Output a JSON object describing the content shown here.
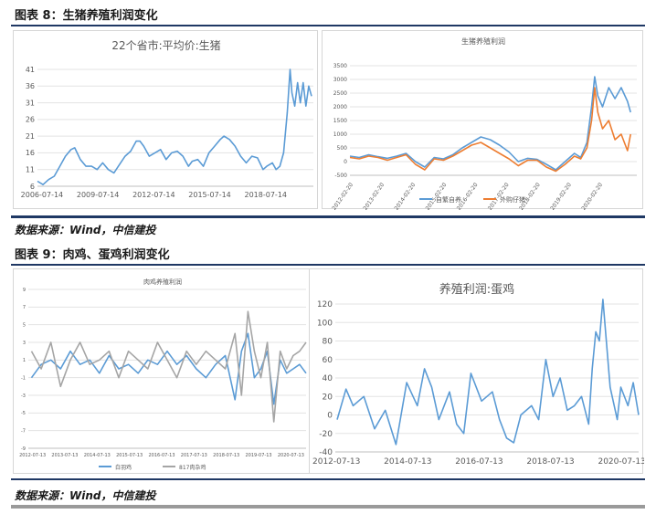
{
  "figure8": {
    "title": "图表 8：生猪养殖利润变化"
  },
  "figure9": {
    "title": "图表 9：肉鸡、蛋鸡利润变化"
  },
  "source_note_1": "数据来源：Wind，中信建投",
  "source_note_2": "数据来源：Wind，中信建投",
  "colors": {
    "blue": "#5b9bd5",
    "orange": "#ed7d31",
    "gray": "#a5a5a5",
    "rule": "#1f3864"
  },
  "chart_data": [
    {
      "id": "hog-price",
      "type": "line",
      "title": "22个省市:平均价:生猪",
      "xlabel": "",
      "ylabel": "",
      "xlim": [
        2006.3,
        2021.1
      ],
      "ylim": [
        6,
        41
      ],
      "yticks": [
        6,
        11,
        16,
        21,
        26,
        31,
        36,
        41
      ],
      "xticks": [
        2006.54,
        2009.54,
        2012.54,
        2015.54,
        2018.54
      ],
      "xtick_labels": [
        "2006-07-14",
        "2009-07-14",
        "2012-07-14",
        "2015-07-14",
        "2018-07-14"
      ],
      "grid": "horizontal",
      "series": [
        {
          "color": "#5b9bd5",
          "x": [
            2006.3,
            2006.6,
            2006.9,
            2007.2,
            2007.5,
            2007.8,
            2008.1,
            2008.3,
            2008.6,
            2008.9,
            2009.2,
            2009.5,
            2009.8,
            2010.1,
            2010.4,
            2010.7,
            2011.0,
            2011.3,
            2011.6,
            2011.8,
            2012.0,
            2012.3,
            2012.6,
            2012.9,
            2013.2,
            2013.5,
            2013.8,
            2014.1,
            2014.4,
            2014.6,
            2014.9,
            2015.2,
            2015.5,
            2015.8,
            2016.1,
            2016.3,
            2016.6,
            2016.9,
            2017.2,
            2017.5,
            2017.8,
            2018.1,
            2018.4,
            2018.6,
            2018.9,
            2019.1,
            2019.3,
            2019.5,
            2019.7,
            2019.85,
            2019.95,
            2020.1,
            2020.25,
            2020.4,
            2020.55,
            2020.7,
            2020.85,
            2021.0
          ],
          "y": [
            7.5,
            6.5,
            8,
            9,
            12,
            15,
            17,
            17.5,
            14,
            12,
            12,
            11,
            13,
            11,
            10,
            12.5,
            15,
            16.5,
            19.5,
            19.5,
            18,
            15,
            16,
            17,
            14,
            16,
            16.5,
            15,
            12,
            13.5,
            14,
            12,
            16,
            18,
            20,
            21,
            20,
            18,
            15,
            13,
            15,
            14.5,
            11,
            12,
            13,
            11,
            12,
            16,
            28,
            41,
            34,
            30,
            37,
            31,
            37,
            30,
            36,
            33
          ]
        }
      ]
    },
    {
      "id": "hog-profit",
      "type": "line",
      "title": "生猪养殖利润",
      "xlabel": "",
      "ylabel": "",
      "xlim": [
        2012.0,
        2021.2
      ],
      "ylim": [
        -500,
        3500
      ],
      "yticks": [
        -500,
        0,
        500,
        1000,
        1500,
        2000,
        2500,
        3000,
        3500
      ],
      "xticks": [
        2012.1,
        2013.1,
        2014.1,
        2015.1,
        2016.1,
        2017.1,
        2018.1,
        2019.1,
        2020.1
      ],
      "xtick_labels": [
        "2012-02-20",
        "2013-02-20",
        "2014-02-20",
        "2015-02-20",
        "2016-02-20",
        "2017-02-20",
        "2018-02-20",
        "2019-02-20",
        "2020-02-20"
      ],
      "grid": "horizontal",
      "legend": "bottom",
      "series": [
        {
          "name": "自繁自养",
          "color": "#5b9bd5",
          "x": [
            2012.0,
            2012.3,
            2012.6,
            2012.9,
            2013.2,
            2013.5,
            2013.8,
            2014.1,
            2014.4,
            2014.7,
            2015.0,
            2015.3,
            2015.6,
            2015.9,
            2016.2,
            2016.5,
            2016.8,
            2017.1,
            2017.4,
            2017.7,
            2018.0,
            2018.3,
            2018.6,
            2018.9,
            2019.2,
            2019.4,
            2019.6,
            2019.75,
            2019.85,
            2019.95,
            2020.1,
            2020.3,
            2020.5,
            2020.7,
            2020.9,
            2021.0
          ],
          "y": [
            200,
            150,
            250,
            180,
            120,
            200,
            300,
            0,
            -200,
            150,
            100,
            250,
            500,
            700,
            900,
            800,
            600,
            350,
            0,
            120,
            80,
            -100,
            -300,
            0,
            300,
            150,
            700,
            2000,
            3100,
            2400,
            2000,
            2700,
            2300,
            2700,
            2200,
            1800
          ]
        },
        {
          "name": "外购仔猪",
          "color": "#ed7d31",
          "x": [
            2012.0,
            2012.3,
            2012.6,
            2012.9,
            2013.2,
            2013.5,
            2013.8,
            2014.1,
            2014.4,
            2014.7,
            2015.0,
            2015.3,
            2015.6,
            2015.9,
            2016.2,
            2016.5,
            2016.8,
            2017.1,
            2017.4,
            2017.7,
            2018.0,
            2018.3,
            2018.6,
            2018.9,
            2019.2,
            2019.4,
            2019.6,
            2019.75,
            2019.85,
            2019.95,
            2020.1,
            2020.3,
            2020.5,
            2020.7,
            2020.9,
            2021.0
          ],
          "y": [
            150,
            100,
            200,
            150,
            50,
            150,
            250,
            -100,
            -300,
            100,
            50,
            200,
            400,
            600,
            700,
            500,
            300,
            100,
            -150,
            50,
            50,
            -200,
            -350,
            -100,
            200,
            100,
            500,
            1500,
            2700,
            1800,
            1200,
            1500,
            800,
            1000,
            400,
            1000
          ]
        }
      ]
    },
    {
      "id": "broiler-profit",
      "type": "line",
      "title": "肉鸡养殖利润",
      "xlabel": "",
      "ylabel": "",
      "xlim": [
        2012.4,
        2021.0
      ],
      "ylim": [
        -9,
        9
      ],
      "yticks": [
        -9,
        -7,
        -5,
        -3,
        -1,
        1,
        3,
        5,
        7,
        9
      ],
      "xticks": [
        2012.53,
        2013.53,
        2014.53,
        2015.53,
        2016.53,
        2017.53,
        2018.53,
        2019.53,
        2020.53
      ],
      "xtick_labels": [
        "2012-07-13",
        "2013-07-13",
        "2014-07-13",
        "2015-07-13",
        "2016-07-13",
        "2017-07-13",
        "2018-07-13",
        "2019-07-13",
        "2020-07-13"
      ],
      "grid": "horizontal",
      "legend": "bottom",
      "series": [
        {
          "name": "白羽鸡",
          "color": "#5b9bd5",
          "x": [
            2012.5,
            2012.8,
            2013.1,
            2013.4,
            2013.7,
            2014.0,
            2014.3,
            2014.6,
            2014.9,
            2015.2,
            2015.5,
            2015.8,
            2016.1,
            2016.4,
            2016.7,
            2017.0,
            2017.3,
            2017.6,
            2017.9,
            2018.2,
            2018.5,
            2018.8,
            2019.0,
            2019.2,
            2019.4,
            2019.6,
            2019.8,
            2020.0,
            2020.2,
            2020.4,
            2020.6,
            2020.8,
            2021.0
          ],
          "y": [
            -1,
            0.5,
            1,
            0,
            2,
            0.5,
            1,
            -0.5,
            1.5,
            0,
            0.5,
            -0.5,
            1,
            0.5,
            2,
            0.5,
            1.5,
            0,
            -1,
            0.5,
            1.5,
            -3.5,
            2,
            4,
            -1,
            0,
            2,
            -4,
            1,
            -0.5,
            0,
            0.5,
            -0.5
          ]
        },
        {
          "name": "817肉杂鸡",
          "color": "#a5a5a5",
          "x": [
            2012.5,
            2012.8,
            2013.1,
            2013.4,
            2013.7,
            2014.0,
            2014.3,
            2014.6,
            2014.9,
            2015.2,
            2015.5,
            2015.8,
            2016.1,
            2016.4,
            2016.7,
            2017.0,
            2017.3,
            2017.6,
            2017.9,
            2018.2,
            2018.5,
            2018.8,
            2019.0,
            2019.2,
            2019.4,
            2019.6,
            2019.8,
            2020.0,
            2020.2,
            2020.4,
            2020.6,
            2020.8,
            2021.0
          ],
          "y": [
            2,
            0,
            3,
            -2,
            1,
            3,
            0.5,
            1,
            2,
            -1,
            2,
            1,
            0,
            3,
            1,
            -1,
            2,
            0.5,
            2,
            1,
            0,
            4,
            -3,
            6.5,
            2,
            -1,
            3,
            -6,
            2,
            0,
            1.5,
            2,
            3
          ]
        }
      ]
    },
    {
      "id": "layer-profit",
      "type": "line",
      "title": "养殖利润:蛋鸡",
      "xlabel": "",
      "ylabel": "",
      "xlim": [
        2012.5,
        2021.0
      ],
      "ylim": [
        -40,
        120
      ],
      "yticks": [
        -40,
        -20,
        0,
        20,
        40,
        60,
        80,
        100,
        120
      ],
      "xticks": [
        2012.53,
        2014.53,
        2016.53,
        2018.53,
        2020.53
      ],
      "xtick_labels": [
        "2012-07-13",
        "2014-07-13",
        "2016-07-13",
        "2018-07-13",
        "2020-07-13"
      ],
      "grid": "horizontal",
      "series": [
        {
          "color": "#5b9bd5",
          "x": [
            2012.55,
            2012.8,
            2013.0,
            2013.3,
            2013.6,
            2013.9,
            2014.2,
            2014.5,
            2014.8,
            2015.0,
            2015.2,
            2015.4,
            2015.7,
            2015.9,
            2016.1,
            2016.3,
            2016.6,
            2016.9,
            2017.1,
            2017.3,
            2017.5,
            2017.7,
            2018.0,
            2018.2,
            2018.4,
            2018.6,
            2018.8,
            2019.0,
            2019.2,
            2019.4,
            2019.6,
            2019.7,
            2019.8,
            2019.9,
            2020.0,
            2020.2,
            2020.4,
            2020.5,
            2020.7,
            2020.85,
            2021.0
          ],
          "y": [
            -5,
            28,
            10,
            20,
            -15,
            5,
            -32,
            35,
            10,
            50,
            30,
            -5,
            25,
            -10,
            -20,
            45,
            15,
            25,
            -5,
            -25,
            -30,
            0,
            10,
            -5,
            60,
            20,
            40,
            5,
            10,
            20,
            -10,
            50,
            90,
            80,
            125,
            30,
            -5,
            30,
            10,
            35,
            0
          ]
        }
      ]
    }
  ]
}
